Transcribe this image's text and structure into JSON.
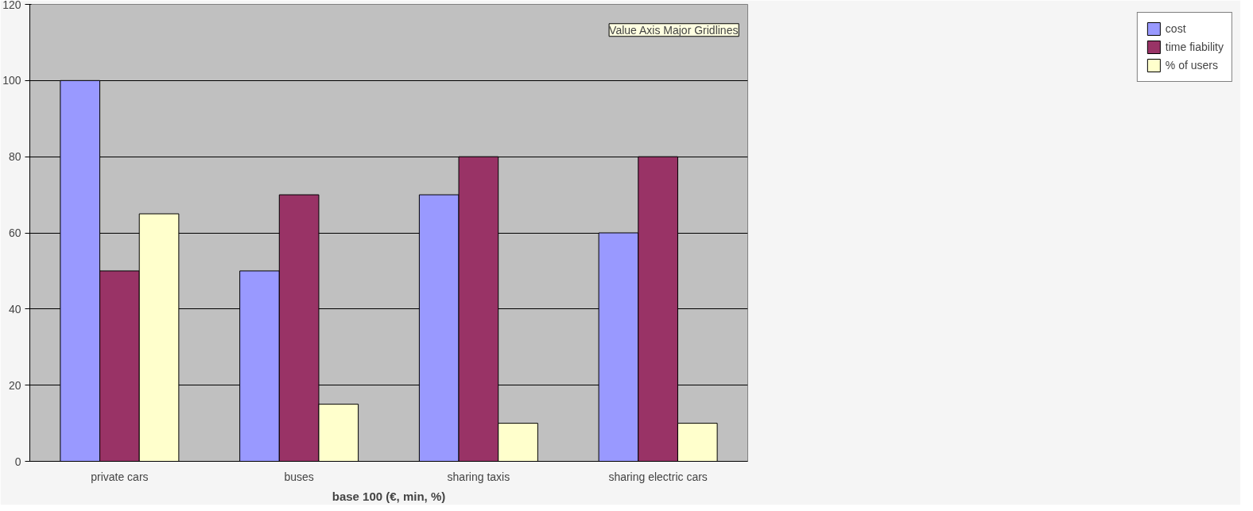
{
  "chart_data": {
    "type": "bar",
    "xlabel": "base 100 (€, min, %)",
    "categories": [
      "private cars",
      "buses",
      "sharing taxis",
      "sharing electric cars"
    ],
    "series": [
      {
        "name": "cost",
        "color": "#9999ff",
        "values": [
          100,
          50,
          70,
          60
        ]
      },
      {
        "name": "time fiability",
        "color": "#993366",
        "values": [
          50,
          70,
          80,
          80
        ]
      },
      {
        "name": "% of users",
        "color": "#ffffcc",
        "values": [
          65,
          15,
          10,
          10
        ]
      }
    ],
    "ylim": [
      0,
      120
    ],
    "yticks": [
      0,
      20,
      40,
      60,
      80,
      100,
      120
    ],
    "grid": "y",
    "legend": "right",
    "annotations": [
      "Value Axis Major Gridlines"
    ]
  }
}
